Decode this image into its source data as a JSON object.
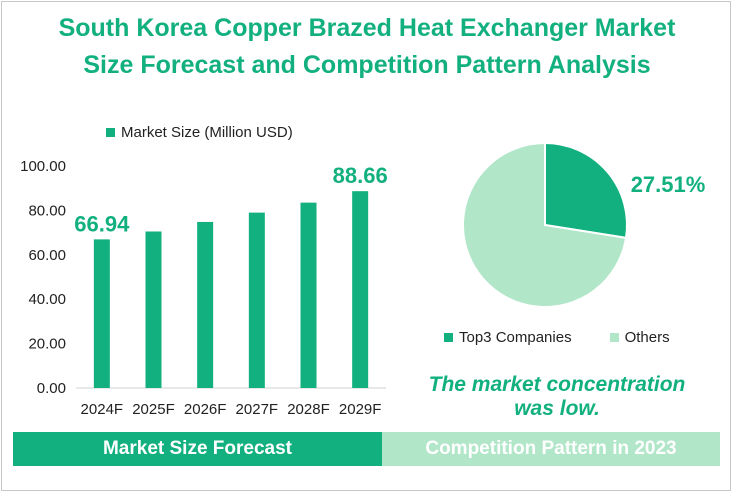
{
  "title": {
    "line1": "South Korea Copper Brazed Heat Exchanger Market",
    "line2": "Size Forecast and Competition Pattern Analysis"
  },
  "colors": {
    "accent": "#12b07e",
    "light": "#b1e6c9"
  },
  "chart_data": [
    {
      "type": "bar",
      "legend": "Market Size (Million USD)",
      "categories": [
        "2024F",
        "2025F",
        "2026F",
        "2027F",
        "2028F",
        "2029F"
      ],
      "series": [
        {
          "name": "Market Size (Million USD)",
          "values": [
            66.94,
            70.5,
            74.8,
            79.0,
            83.5,
            88.66
          ]
        }
      ],
      "data_labels": [
        "66.94",
        "",
        "",
        "",
        "",
        "88.66"
      ],
      "yticks": [
        "0.00",
        "20.00",
        "40.00",
        "60.00",
        "80.00",
        "100.00"
      ],
      "ylim": [
        0,
        100
      ],
      "grid": false,
      "legend_position": "top"
    },
    {
      "type": "pie",
      "slices": [
        {
          "label": "Top3 Companies",
          "value": 27.51,
          "color": "#12b07e"
        },
        {
          "label": "Others",
          "value": 72.49,
          "color": "#b1e6c9"
        }
      ],
      "data_label": "27.51%",
      "legend_position": "bottom"
    }
  ],
  "conclusion": {
    "line1": "The market concentration",
    "line2": "was low."
  },
  "footer": {
    "left": "Market Size Forecast",
    "right": "Competition Pattern in 2023"
  }
}
